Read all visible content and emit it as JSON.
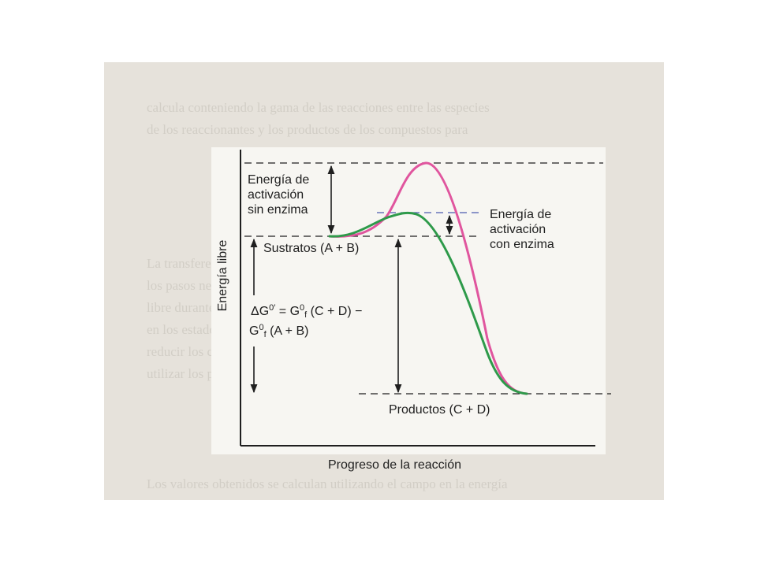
{
  "diagram": {
    "y_axis_label": "Energía libre",
    "x_axis_label": "Progreso de la reacción",
    "labels": {
      "activation_without_enzyme": [
        "Energía de",
        "activación",
        "sin enzima"
      ],
      "activation_with_enzyme": [
        "Energía de",
        "activación",
        "con enzima"
      ],
      "substrates": "Sustratos (A + B)",
      "products": "Productos (C + D)",
      "delta_g_line1": {
        "delta": "ΔG",
        "delta_sup": "0′",
        "equals": " = G",
        "g_sup": "0",
        "g_sub": "f",
        "rest": " (C + D) −"
      },
      "delta_g_line2": {
        "g": "G",
        "g_sup": "0",
        "g_sub": "f",
        "rest": " (A + B)"
      }
    },
    "colors": {
      "uncatalyzed_curve": "#e0559e",
      "catalyzed_curve": "#2e9a4a",
      "enzyme_dashed_line": "#4d5bb0",
      "ink": "#1f1f1f"
    },
    "background_scan": {
      "colors": {
        "page": "#e6e2db",
        "ghost_text": "#d2cec6"
      }
    }
  }
}
